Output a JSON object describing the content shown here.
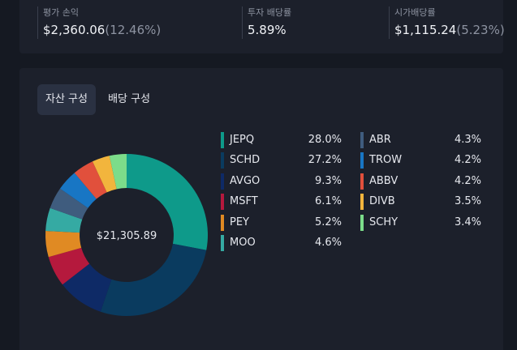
{
  "stats": [
    {
      "label": "평가 손익",
      "value": "$2,360.06",
      "sub": "(12.46%)"
    },
    {
      "label": "투자 배당률",
      "value": "5.89%",
      "sub": ""
    },
    {
      "label": "시가배당률",
      "value": "$1,115.24",
      "sub": "(5.23%)"
    }
  ],
  "tabs": [
    {
      "label": "자산 구성",
      "active": true
    },
    {
      "label": "배당 구성",
      "active": false
    }
  ],
  "chart_data": {
    "type": "pie",
    "style": "donut",
    "center_label": "$21,305.89",
    "slices": [
      {
        "name": "JEPQ",
        "value": 28.0,
        "label": "28.0%",
        "color": "#0e9a8a"
      },
      {
        "name": "SCHD",
        "value": 27.2,
        "label": "27.2%",
        "color": "#0a3b5f"
      },
      {
        "name": "AVGO",
        "value": 9.3,
        "label": "9.3%",
        "color": "#0e2a66"
      },
      {
        "name": "MSFT",
        "value": 6.1,
        "label": "6.1%",
        "color": "#b5193d"
      },
      {
        "name": "PEY",
        "value": 5.2,
        "label": "5.2%",
        "color": "#e08a23"
      },
      {
        "name": "MOO",
        "value": 4.6,
        "label": "4.6%",
        "color": "#35aaa3"
      },
      {
        "name": "ABR",
        "value": 4.3,
        "label": "4.3%",
        "color": "#3f5c7e"
      },
      {
        "name": "TROW",
        "value": 4.2,
        "label": "4.2%",
        "color": "#1876c4"
      },
      {
        "name": "ABBV",
        "value": 4.2,
        "label": "4.2%",
        "color": "#e1503c"
      },
      {
        "name": "DIVB",
        "value": 3.5,
        "label": "3.5%",
        "color": "#f2b53d"
      },
      {
        "name": "SCHY",
        "value": 3.4,
        "label": "3.4%",
        "color": "#7cdc8a"
      }
    ]
  }
}
